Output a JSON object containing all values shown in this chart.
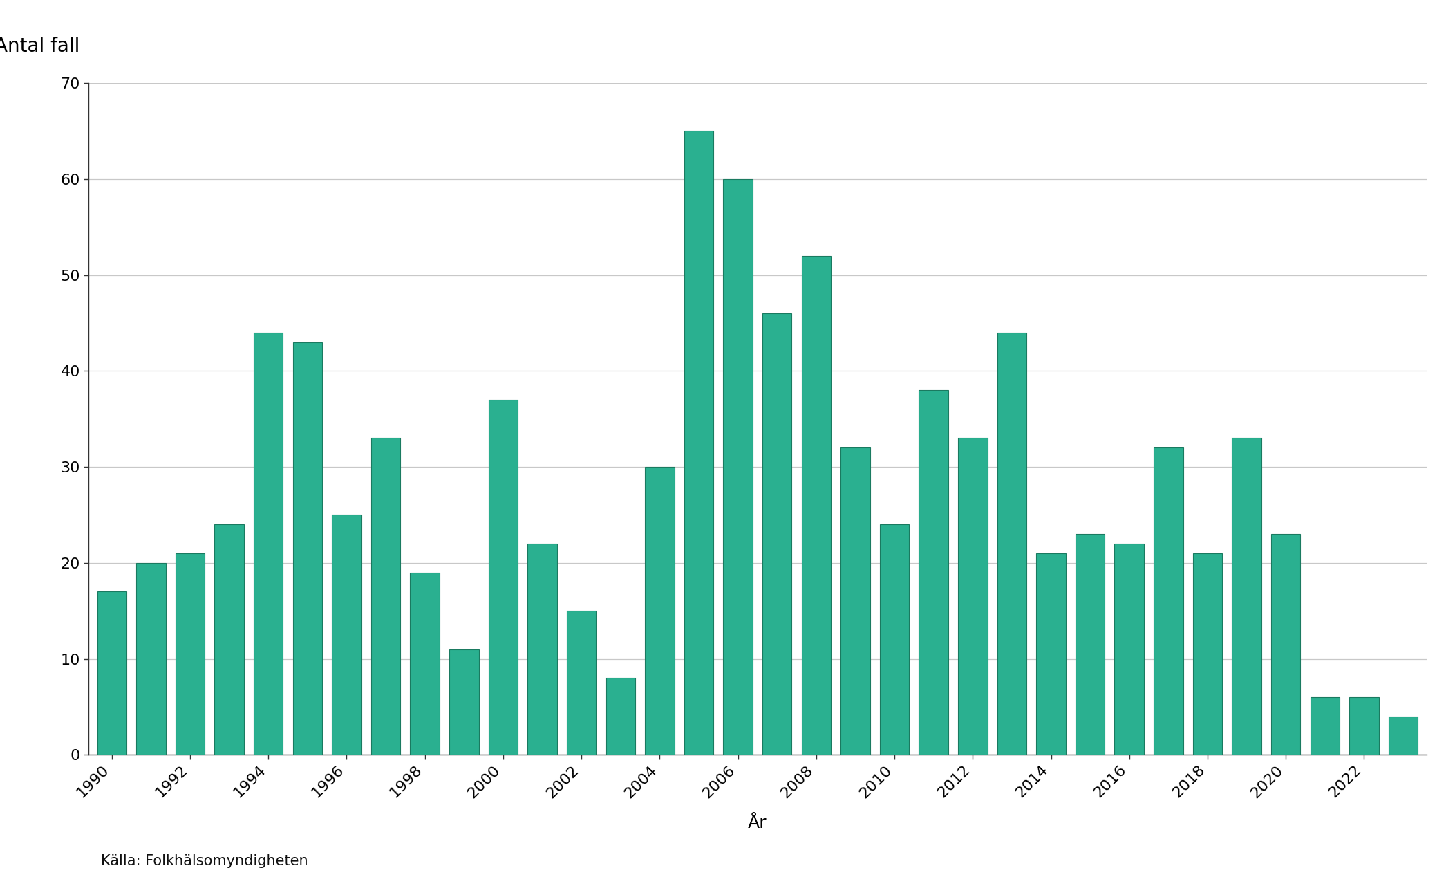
{
  "years": [
    1990,
    1991,
    1992,
    1993,
    1994,
    1995,
    1996,
    1997,
    1998,
    1999,
    2000,
    2001,
    2002,
    2003,
    2004,
    2005,
    2006,
    2007,
    2008,
    2009,
    2010,
    2011,
    2012,
    2013,
    2014,
    2015,
    2016,
    2017,
    2018,
    2019,
    2020,
    2021,
    2022,
    2023
  ],
  "values": [
    17,
    20,
    21,
    24,
    44,
    43,
    25,
    33,
    19,
    11,
    37,
    22,
    15,
    8,
    30,
    65,
    60,
    46,
    52,
    32,
    24,
    38,
    33,
    44,
    21,
    23,
    22,
    32,
    21,
    33,
    23,
    6,
    6,
    4
  ],
  "bar_color": "#2ab090",
  "bar_edge_color": "#1a7a60",
  "ylabel": "Antal fall",
  "xlabel": "År",
  "ylim": [
    0,
    70
  ],
  "yticks": [
    0,
    10,
    20,
    30,
    40,
    50,
    60,
    70
  ],
  "source_text": "Källa: Folkhälsomyndigheten",
  "background_color": "#ffffff",
  "grid_color": "#c8c8c8",
  "label_fontsize": 18,
  "tick_fontsize": 16,
  "source_fontsize": 15,
  "ylabel_fontsize": 20
}
